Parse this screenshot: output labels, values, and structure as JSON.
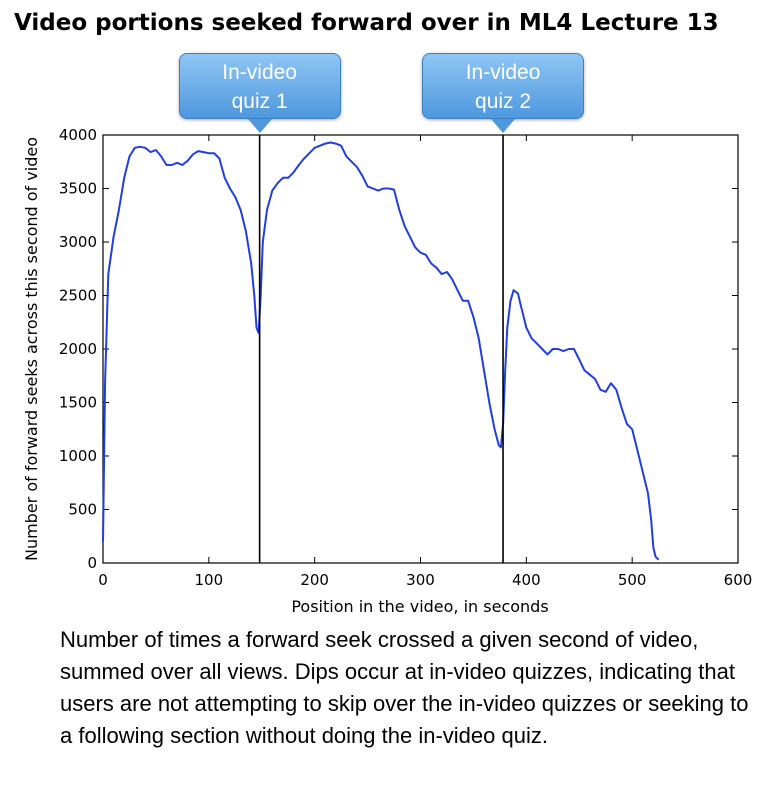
{
  "title": "Video portions seeked forward over in ML4 Lecture 13",
  "caption": "Number of times a forward seek crossed a given second of video, summed over all views. Dips occur at in-video quizzes, indicating that users are not attempting to skip over the in-video quizzes or seeking to a following section without doing the in-video quiz.",
  "callouts": [
    {
      "line1": "In-video",
      "line2": "quiz 1",
      "x": 148
    },
    {
      "line1": "In-video",
      "line2": "quiz 2",
      "x": 378
    }
  ],
  "colors": {
    "line": "#1f3fe0",
    "callout": "#5aa3e6"
  },
  "chart_data": {
    "type": "line",
    "title": "Video portions seeked forward over in ML4 Lecture 13",
    "xlabel": "Position in the video, in seconds",
    "ylabel": "Number of forward seeks across this second of video",
    "xlim": [
      0,
      600
    ],
    "ylim": [
      0,
      4000
    ],
    "xticks": [
      0,
      100,
      200,
      300,
      400,
      500,
      600
    ],
    "yticks": [
      0,
      500,
      1000,
      1500,
      2000,
      2500,
      3000,
      3500,
      4000
    ],
    "grid": false,
    "vlines": [
      148,
      378
    ],
    "series": [
      {
        "x": [
          0,
          2,
          5,
          10,
          15,
          20,
          25,
          30,
          35,
          40,
          45,
          50,
          55,
          60,
          65,
          70,
          75,
          80,
          85,
          90,
          95,
          100,
          105,
          110,
          115,
          120,
          125,
          130,
          135,
          140,
          143,
          145,
          147,
          149,
          151,
          155,
          160,
          165,
          170,
          175,
          180,
          185,
          190,
          195,
          200,
          205,
          210,
          215,
          220,
          225,
          230,
          235,
          240,
          245,
          250,
          255,
          260,
          265,
          270,
          275,
          280,
          285,
          290,
          295,
          300,
          305,
          310,
          315,
          320,
          325,
          330,
          335,
          340,
          345,
          350,
          355,
          360,
          365,
          370,
          374,
          376,
          378,
          380,
          382,
          385,
          388,
          392,
          395,
          400,
          405,
          410,
          415,
          420,
          425,
          430,
          435,
          440,
          445,
          450,
          455,
          460,
          465,
          470,
          475,
          480,
          485,
          490,
          495,
          500,
          505,
          510,
          515,
          518,
          520,
          522,
          525
        ],
        "values": [
          200,
          1700,
          2700,
          3050,
          3300,
          3600,
          3800,
          3880,
          3890,
          3880,
          3840,
          3860,
          3800,
          3720,
          3720,
          3740,
          3720,
          3760,
          3820,
          3850,
          3840,
          3830,
          3830,
          3780,
          3600,
          3500,
          3420,
          3300,
          3100,
          2800,
          2500,
          2200,
          2150,
          2500,
          3000,
          3300,
          3480,
          3550,
          3600,
          3600,
          3650,
          3720,
          3780,
          3830,
          3880,
          3900,
          3920,
          3930,
          3920,
          3900,
          3800,
          3750,
          3700,
          3620,
          3520,
          3500,
          3480,
          3500,
          3500,
          3490,
          3300,
          3150,
          3050,
          2950,
          2900,
          2880,
          2800,
          2760,
          2700,
          2720,
          2650,
          2550,
          2450,
          2450,
          2300,
          2100,
          1800,
          1500,
          1250,
          1100,
          1080,
          1300,
          1800,
          2200,
          2450,
          2550,
          2520,
          2400,
          2200,
          2100,
          2050,
          2000,
          1950,
          2000,
          2000,
          1980,
          2000,
          2000,
          1900,
          1800,
          1760,
          1720,
          1620,
          1600,
          1680,
          1620,
          1450,
          1300,
          1250,
          1050,
          850,
          650,
          400,
          150,
          60,
          30
        ]
      }
    ]
  }
}
